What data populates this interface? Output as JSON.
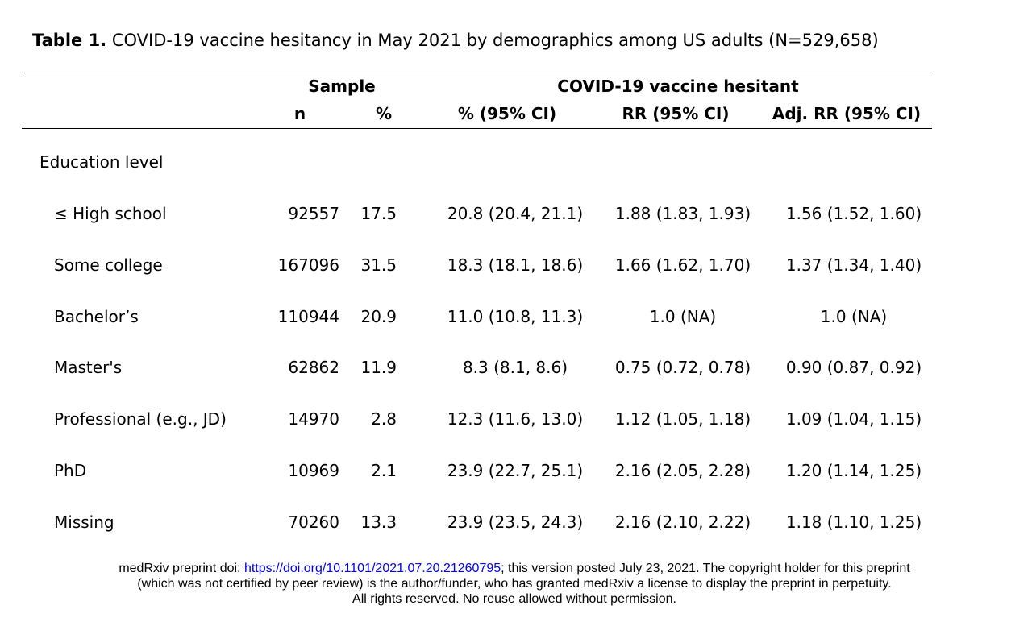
{
  "caption": {
    "label": "Table 1.",
    "text": "COVID-19 vaccine hesitancy in May 2021 by demographics among US adults (N=529,658)"
  },
  "headers": {
    "group_sample": "Sample",
    "group_hesitant": "COVID-19 vaccine hesitant",
    "n": "n",
    "pct": "%",
    "pct_ci": "% (95% CI)",
    "rr": "RR (95% CI)",
    "adj_rr": "Adj. RR (95% CI)"
  },
  "section": {
    "label": "Education level"
  },
  "rows": [
    {
      "label": "≤ High school",
      "n": "92557",
      "pct": "17.5",
      "pct_ci": "20.8 (20.4, 21.1)",
      "rr": "1.88 (1.83, 1.93)",
      "adj_rr": "1.56 (1.52, 1.60)"
    },
    {
      "label": "Some college",
      "n": "167096",
      "pct": "31.5",
      "pct_ci": "18.3 (18.1, 18.6)",
      "rr": "1.66 (1.62, 1.70)",
      "adj_rr": "1.37 (1.34, 1.40)"
    },
    {
      "label": "Bachelor’s",
      "n": "110944",
      "pct": "20.9",
      "pct_ci": "11.0 (10.8, 11.3)",
      "rr": "1.0 (NA)",
      "adj_rr": "1.0 (NA)"
    },
    {
      "label": "Master's",
      "n": "62862",
      "pct": "11.9",
      "pct_ci": "8.3 (8.1, 8.6)",
      "rr": "0.75 (0.72, 0.78)",
      "adj_rr": "0.90 (0.87, 0.92)"
    },
    {
      "label": "Professional (e.g., JD)",
      "n": "14970",
      "pct": "2.8",
      "pct_ci": "12.3 (11.6, 13.0)",
      "rr": "1.12 (1.05, 1.18)",
      "adj_rr": "1.09 (1.04, 1.15)"
    },
    {
      "label": "PhD",
      "n": "10969",
      "pct": "2.1",
      "pct_ci": "23.9 (22.7, 25.1)",
      "rr": "2.16 (2.05, 2.28)",
      "adj_rr": "1.20 (1.14, 1.25)"
    },
    {
      "label": "Missing",
      "n": "70260",
      "pct": "13.3",
      "pct_ci": "23.9 (23.5, 24.3)",
      "rr": "2.16 (2.10, 2.22)",
      "adj_rr": "1.18 (1.10, 1.25)"
    }
  ],
  "footer": {
    "prefix": "medRxiv preprint doi: ",
    "doi_link": "https://doi.org/10.1101/2021.07.20.21260795",
    "line1_suffix": "; this version posted July 23, 2021. The copyright holder for this preprint",
    "line2": "(which was not certified by peer review) is the author/funder, who has granted medRxiv a license to display the preprint in perpetuity.",
    "line3": "All rights reserved. No reuse allowed without permission."
  },
  "colors": {
    "link": "#0000ee",
    "text": "#000000"
  }
}
